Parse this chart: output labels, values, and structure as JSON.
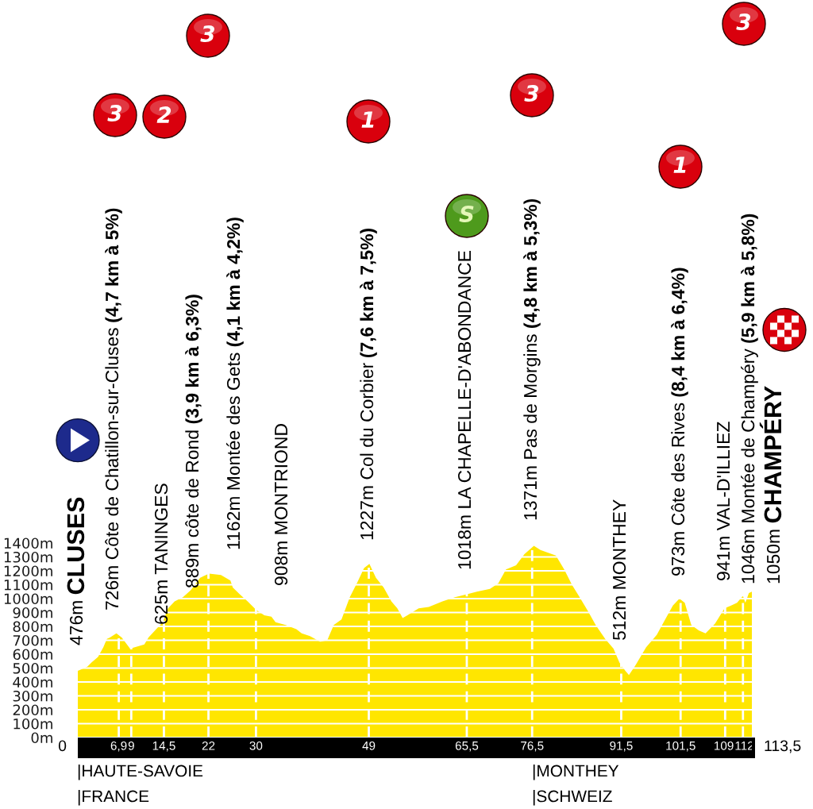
{
  "chart_data": {
    "type": "area",
    "color": "#ffe600",
    "x": [
      0,
      1.6,
      2.3,
      3.4,
      4.3,
      4.9,
      5.4,
      6.5,
      7.4,
      8.1,
      8.8,
      9.6,
      11.2,
      11.9,
      13.2,
      14.3,
      15.2,
      16.3,
      17.7,
      19,
      20.6,
      22.1,
      24.1,
      25.7,
      26.1,
      27.3,
      28.6,
      30,
      31.4,
      32.6,
      33.3,
      35,
      36.8,
      37.7,
      39.1,
      40.8,
      42,
      43.1,
      44.4,
      45.8,
      47.1,
      48.2,
      49.1,
      50.2,
      51.5,
      52.8,
      53.8,
      54.7,
      55.5,
      57.4,
      59.1,
      61.4,
      63.5,
      65.4,
      67.2,
      69.4,
      70.8,
      72.1,
      73.8,
      75.2,
      76.8,
      77.9,
      80.5,
      81.9,
      83.2,
      84.5,
      85.9,
      87.2,
      88.8,
      90.2,
      91.2,
      92.2,
      92.8,
      93.9,
      95.7,
      97.5,
      98.9,
      100.2,
      101.3,
      102.2,
      103.3,
      104.6,
      105.7,
      107.3,
      108.9,
      110,
      111,
      112,
      112.4,
      113,
      113.5
    ],
    "values": [
      480,
      510,
      540,
      580,
      650,
      710,
      720,
      750,
      720,
      680,
      640,
      650,
      670,
      720,
      780,
      830,
      930,
      980,
      1010,
      1060,
      1150,
      1180,
      1170,
      1130,
      1080,
      1030,
      980,
      920,
      880,
      870,
      830,
      810,
      780,
      750,
      730,
      690,
      700,
      810,
      850,
      1010,
      1120,
      1220,
      1250,
      1150,
      1080,
      980,
      930,
      860,
      880,
      930,
      940,
      980,
      1010,
      1030,
      1050,
      1070,
      1110,
      1210,
      1240,
      1320,
      1380,
      1350,
      1310,
      1210,
      1100,
      1010,
      910,
      810,
      710,
      640,
      540,
      480,
      450,
      520,
      650,
      740,
      850,
      950,
      1000,
      970,
      810,
      770,
      750,
      820,
      930,
      950,
      970,
      1020,
      970,
      1040,
      1050
    ],
    "xlim": [
      0,
      113.5
    ],
    "ylim": [
      0,
      1400
    ],
    "xticks": [
      {
        "value": 6.9,
        "label": "6,9"
      },
      9,
      {
        "value": 14.5,
        "label": "14,5"
      },
      22,
      30,
      49,
      {
        "value": 65.5,
        "label": "65,5"
      },
      {
        "value": 76.5,
        "label": "76,5"
      },
      {
        "value": 91.5,
        "label": "91,5"
      },
      {
        "value": 101.5,
        "label": "101,5"
      },
      109,
      112
    ],
    "yticks": [
      {
        "value": 0,
        "label": "0m"
      },
      {
        "value": 100,
        "label": "100m"
      },
      {
        "value": 200,
        "label": "200m"
      },
      {
        "value": 300,
        "label": "300m"
      },
      {
        "value": 400,
        "label": "400m"
      },
      {
        "value": 500,
        "label": "500m"
      },
      {
        "value": 600,
        "label": "600m"
      },
      {
        "value": 700,
        "label": "700m"
      },
      {
        "value": 800,
        "label": "800m"
      },
      {
        "value": 900,
        "label": "900m"
      },
      {
        "value": 1000,
        "label": "1000m"
      },
      {
        "value": 1100,
        "label": "1100m"
      },
      {
        "value": 1200,
        "label": "1200m"
      },
      {
        "value": 1300,
        "label": "1300m"
      },
      {
        "value": 1400,
        "label": "1400m"
      }
    ],
    "grid": true,
    "annotations": [
      "476m",
      "CLUSES",
      "726m Côte de Chatillon-sur-Cluses",
      "(4,7 km à 5%)",
      "625m TANINGES",
      "889m côte de Rond",
      "(3,9 km à 6,3%)",
      "1162m Montée des Gets",
      "(4,1 km à 4,2%)",
      "908m MONTRIOND",
      "1227m Col du Corbier",
      "(7,6 km à 7,5%)",
      "1018m LA CHAPELLE-D'ABONDANCE",
      "1371m Pas de Morgins",
      "(4,8 km à 5,3%)",
      "512m MONTHEY",
      "973m Côte des Rives",
      "(8,4 km à 6,4%)",
      "941m VAL-D'ILLIEZ",
      "1046m Montée de Champéry",
      "(5,9 km à 5,8%)",
      "1050m",
      "CHAMPÉRY",
      "3",
      "2",
      "3",
      "1",
      "S",
      "3",
      "1",
      "3",
      "|HAUTE-SAVOIE",
      "|FRANCE",
      "|MONTHEY",
      "|SCHWEIZ",
      "0",
      "113,5"
    ]
  }
}
